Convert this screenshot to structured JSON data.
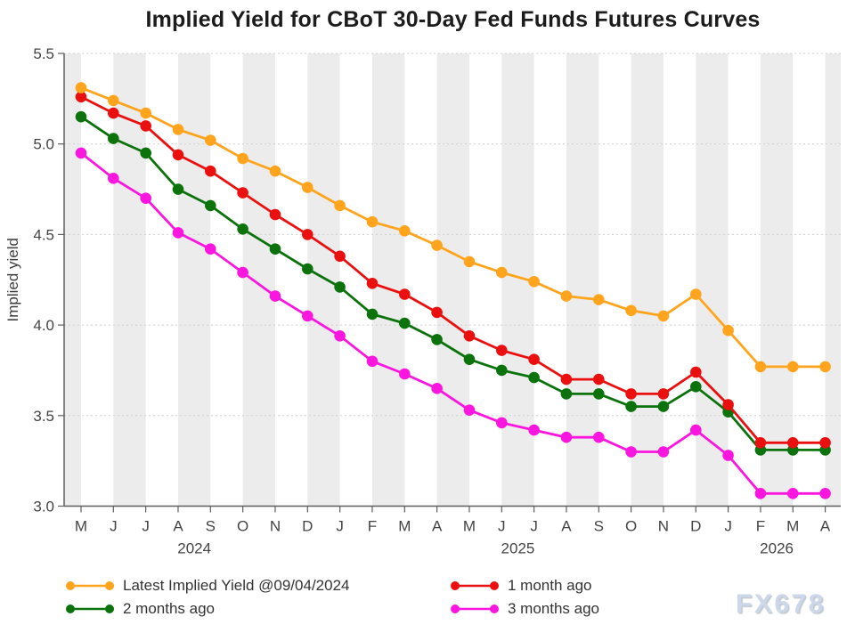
{
  "title": "Implied Yield for CBoT 30-Day Fed Funds Futures Curves",
  "watermark": "FX678",
  "chart_data": {
    "type": "line",
    "title": "Implied Yield for CBoT 30-Day Fed Funds Futures Curves",
    "ylabel": "Implied yield",
    "xlabel": "",
    "ylim": [
      3.0,
      5.5
    ],
    "yticks": [
      3.0,
      3.5,
      4.0,
      4.5,
      5.0,
      5.5
    ],
    "x_tick_labels": [
      "M",
      "J",
      "J",
      "A",
      "S",
      "O",
      "N",
      "D",
      "J",
      "F",
      "M",
      "A",
      "M",
      "J",
      "J",
      "A",
      "S",
      "O",
      "N",
      "D",
      "J",
      "F",
      "M",
      "A"
    ],
    "years": [
      {
        "label": "2024",
        "from": 0,
        "to": 7
      },
      {
        "label": "2025",
        "from": 8,
        "to": 19
      },
      {
        "label": "2026",
        "from": 20,
        "to": 23
      }
    ],
    "grid": "horizontal-dashed",
    "legend_position": "bottom",
    "background_bands": "alternating vertical month stripes",
    "series": [
      {
        "name": "Latest Implied Yield @09/04/2024",
        "color": "#FFA41C",
        "values": [
          5.31,
          5.24,
          5.17,
          5.08,
          5.02,
          4.92,
          4.85,
          4.76,
          4.66,
          4.57,
          4.52,
          4.44,
          4.35,
          4.29,
          4.24,
          4.16,
          4.14,
          4.08,
          4.05,
          4.17,
          3.97,
          3.77,
          3.77,
          3.77
        ]
      },
      {
        "name": "1 month ago",
        "color": "#EB1010",
        "values": [
          5.26,
          5.17,
          5.1,
          4.94,
          4.85,
          4.73,
          4.61,
          4.5,
          4.38,
          4.23,
          4.17,
          4.07,
          3.94,
          3.86,
          3.81,
          3.7,
          3.7,
          3.62,
          3.62,
          3.74,
          3.56,
          3.35,
          3.35,
          3.35
        ]
      },
      {
        "name": "2 months ago",
        "color": "#0C720C",
        "values": [
          5.15,
          5.03,
          4.95,
          4.75,
          4.66,
          4.53,
          4.42,
          4.31,
          4.21,
          4.06,
          4.01,
          3.92,
          3.81,
          3.75,
          3.71,
          3.62,
          3.62,
          3.55,
          3.55,
          3.66,
          3.52,
          3.31,
          3.31,
          3.31
        ]
      },
      {
        "name": "3 months ago",
        "color": "#FA16DE",
        "values": [
          4.95,
          4.81,
          4.7,
          4.51,
          4.42,
          4.29,
          4.16,
          4.05,
          3.94,
          3.8,
          3.73,
          3.65,
          3.53,
          3.46,
          3.42,
          3.38,
          3.38,
          3.3,
          3.3,
          3.42,
          3.28,
          3.07,
          3.07,
          3.07
        ]
      }
    ]
  }
}
